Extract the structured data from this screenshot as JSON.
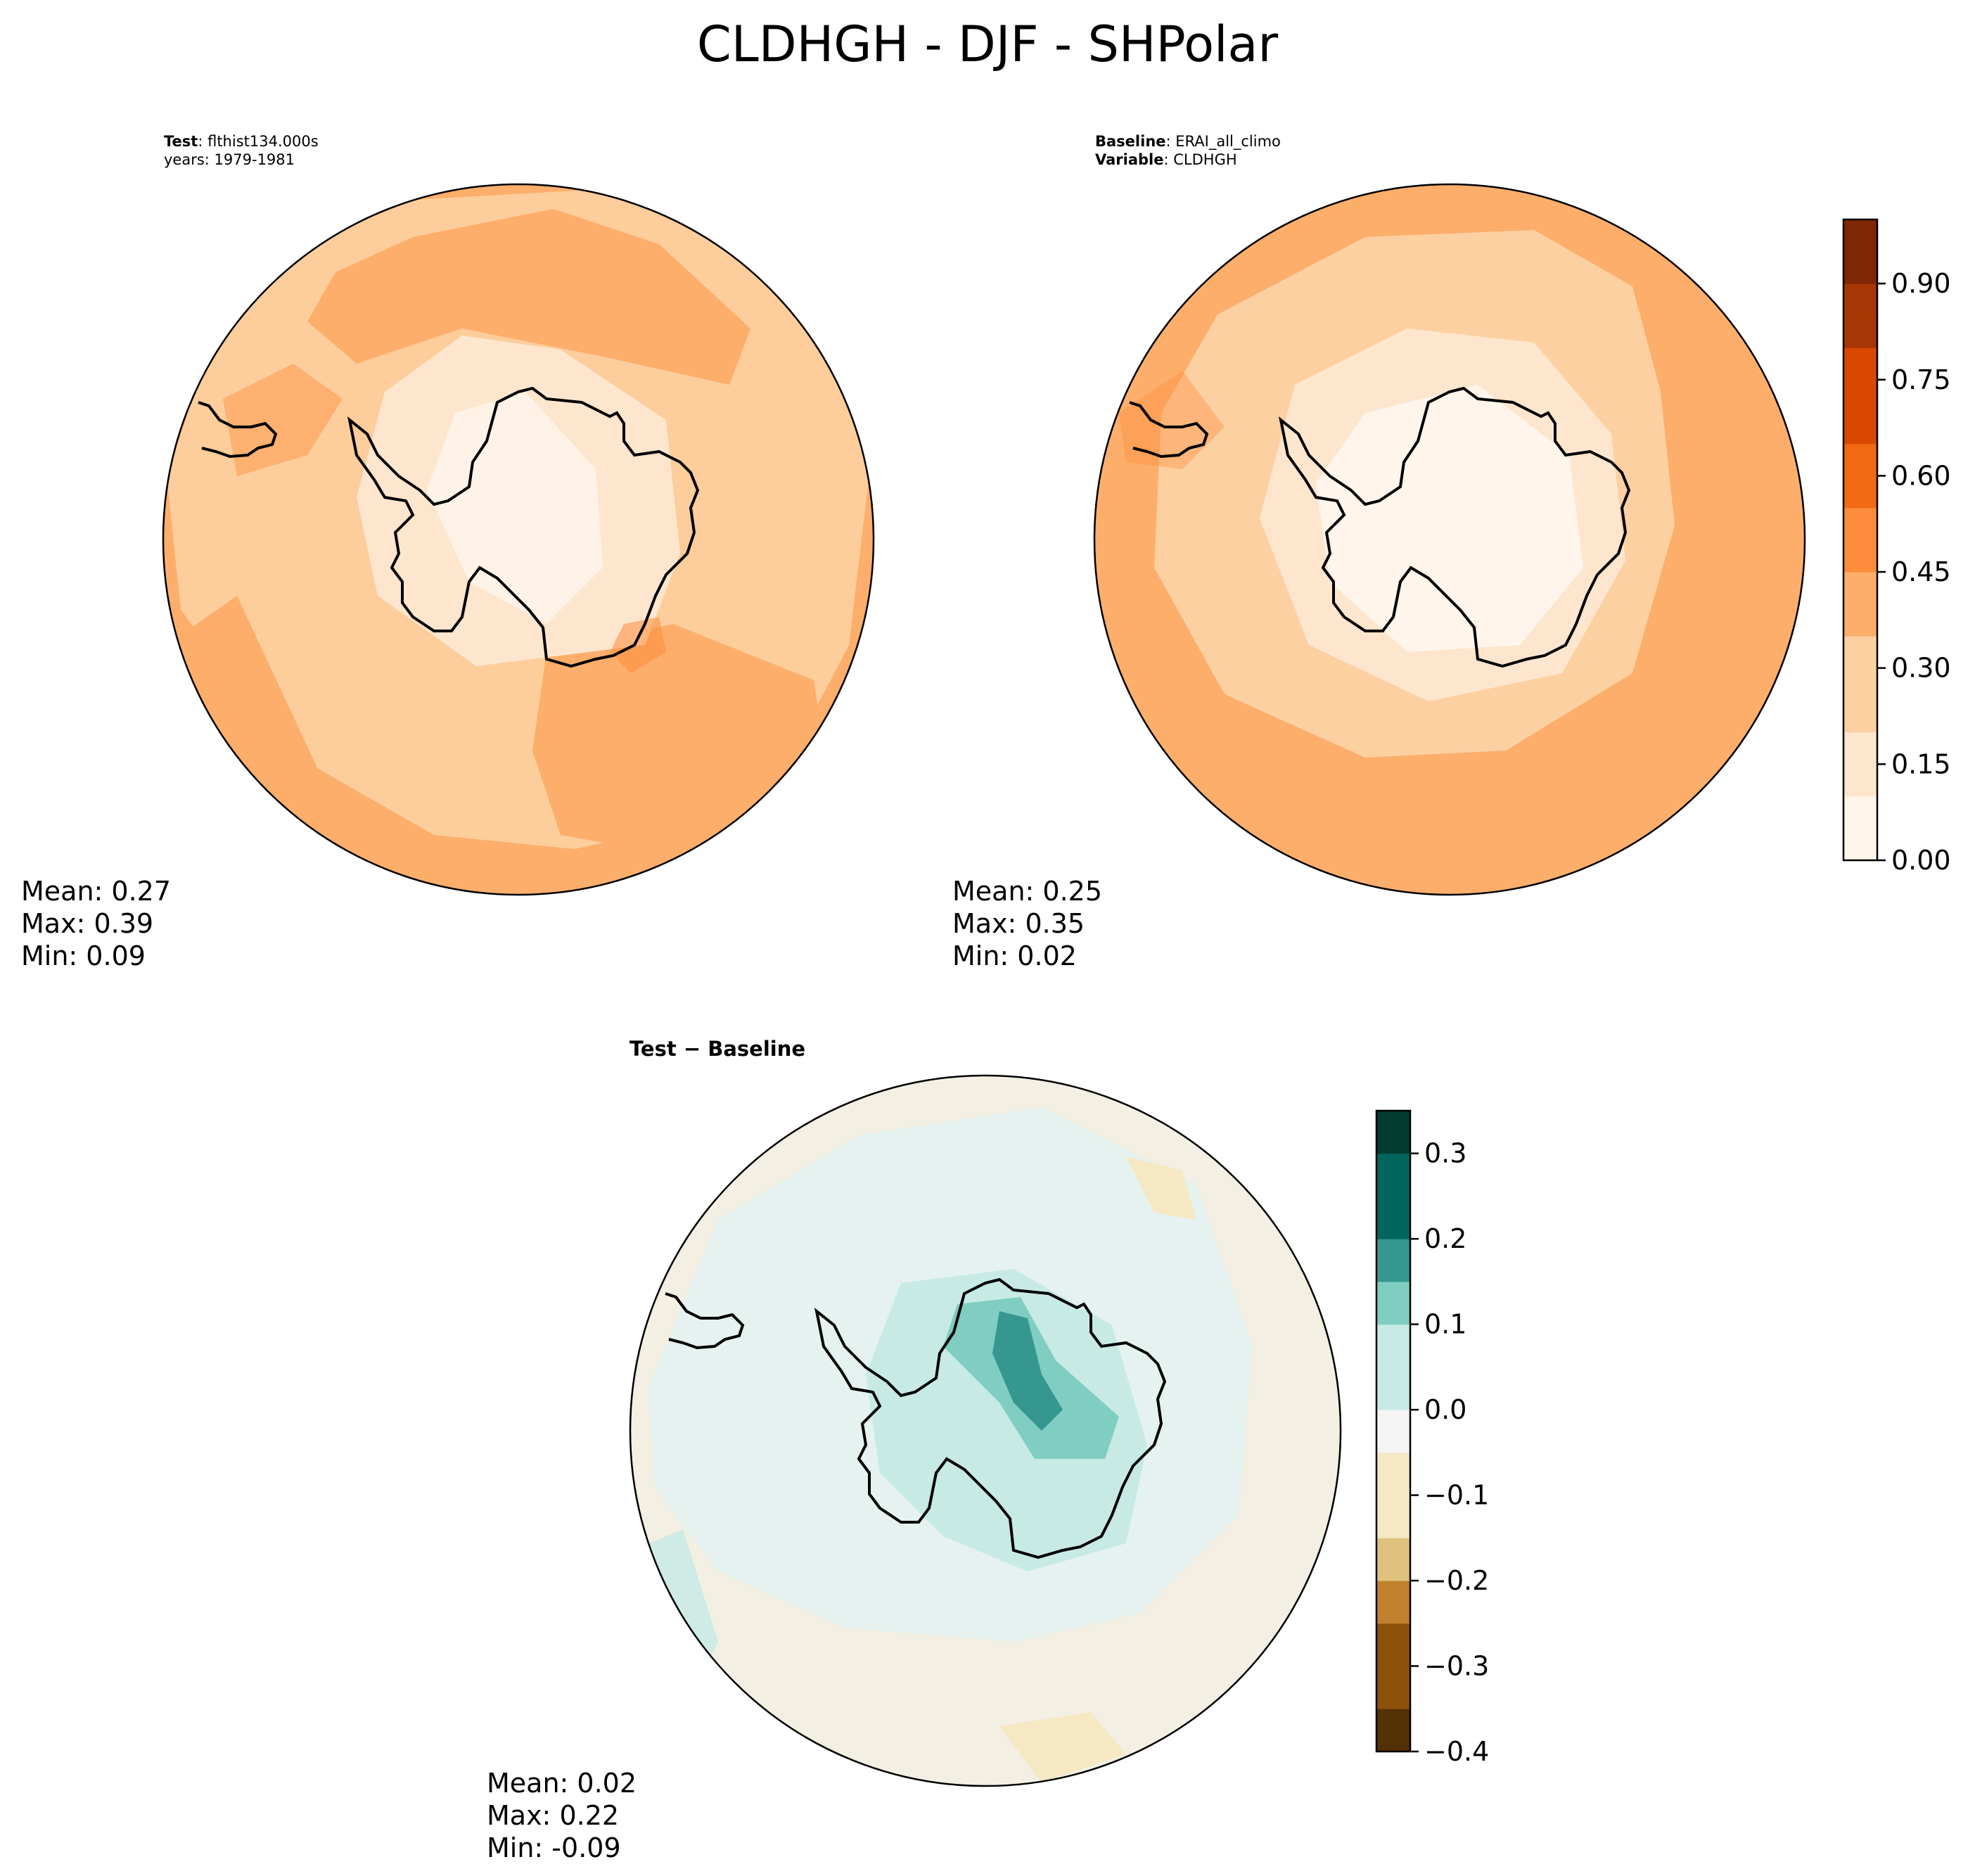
{
  "figure": {
    "title": "CLDHGH - DJF - SHPolar"
  },
  "panels": {
    "test": {
      "label_bold": "Test",
      "label_value": "flthist134.000s",
      "years": "years: 1979-1981",
      "mean": "Mean:  0.27",
      "max": "Max:  0.39",
      "min": "Min:  0.09"
    },
    "baseline": {
      "label_bold": "Baseline",
      "label_value": "ERAI_all_climo",
      "var_bold": "Variable",
      "var_value": "CLDHGH",
      "mean": "Mean:  0.25",
      "max": "Max:  0.35",
      "min": "Min:  0.02"
    },
    "diff": {
      "title": "Test − Baseline",
      "mean": "Mean:  0.02",
      "max": "Max:  0.22",
      "min": "Min: -0.09"
    }
  },
  "colors": {
    "oranges": [
      "#fff5eb",
      "#fee6ce",
      "#fdd0a2",
      "#fdae6b",
      "#fd8d3c",
      "#f16913",
      "#d94801",
      "#a63603",
      "#7f2704"
    ],
    "brbg": [
      "#543005",
      "#8c510a",
      "#bf812d",
      "#dfc27d",
      "#f6e8c3",
      "#f5f5f5",
      "#c7eae5",
      "#80cdc1",
      "#35978f",
      "#01665e",
      "#003c30"
    ]
  },
  "chart_data": [
    {
      "type": "heatmap",
      "projection": "south-polar-stereographic",
      "name": "Test",
      "variable": "CLDHGH",
      "stats": {
        "mean": 0.27,
        "max": 0.39,
        "min": 0.09
      },
      "colorbar": {
        "range": [
          0,
          1
        ],
        "ticks": [
          0.0,
          0.15,
          0.3,
          0.45,
          0.6,
          0.75,
          0.9
        ],
        "tick_labels": [
          "0.00",
          "0.15",
          "0.30",
          "0.45",
          "0.60",
          "0.75",
          "0.90"
        ]
      }
    },
    {
      "type": "heatmap",
      "projection": "south-polar-stereographic",
      "name": "Baseline",
      "variable": "CLDHGH",
      "stats": {
        "mean": 0.25,
        "max": 0.35,
        "min": 0.02
      },
      "colorbar": {
        "range": [
          0,
          1
        ],
        "ticks": [
          0.0,
          0.15,
          0.3,
          0.45,
          0.6,
          0.75,
          0.9
        ],
        "tick_labels": [
          "0.00",
          "0.15",
          "0.30",
          "0.45",
          "0.60",
          "0.75",
          "0.90"
        ]
      }
    },
    {
      "type": "heatmap",
      "projection": "south-polar-stereographic",
      "name": "Test - Baseline",
      "variable": "CLDHGH",
      "stats": {
        "mean": 0.02,
        "max": 0.22,
        "min": -0.09
      },
      "colorbar": {
        "range": [
          -0.4,
          0.35
        ],
        "ticks": [
          -0.4,
          -0.3,
          -0.2,
          -0.1,
          0.0,
          0.1,
          0.2,
          0.3
        ],
        "tick_labels": [
          "−0.4",
          "−0.3",
          "−0.2",
          "−0.1",
          "0.0",
          "0.1",
          "0.2",
          "0.3"
        ]
      }
    }
  ]
}
